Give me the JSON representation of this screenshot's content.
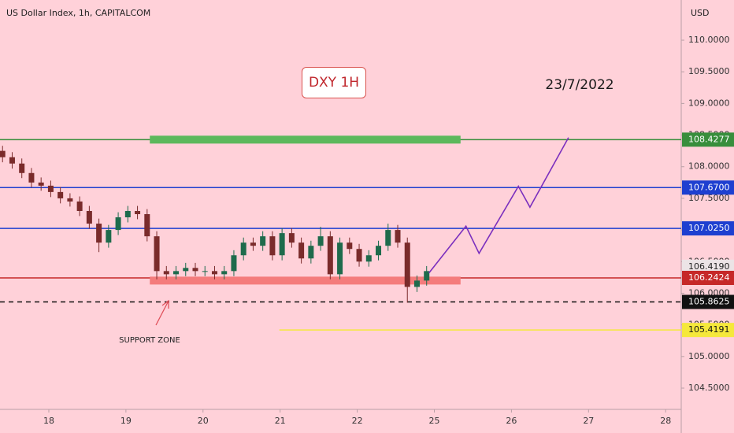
{
  "chart_data": {
    "type": "candlestick",
    "title": "US Dollar Index, 1h, CAPITALCOM",
    "currency": "USD",
    "badge": "DXY 1H",
    "date_note": "23/7/2022",
    "support_note": "SUPPORT ZONE",
    "xlim": [
      -0.633,
      8.202
    ],
    "xticks": [
      {
        "value": 0,
        "label": "18"
      },
      {
        "value": 1,
        "label": "19"
      },
      {
        "value": 2,
        "label": "20"
      },
      {
        "value": 3,
        "label": "21"
      },
      {
        "value": 4,
        "label": "22"
      },
      {
        "value": 5,
        "label": "25"
      },
      {
        "value": 6,
        "label": "26"
      },
      {
        "value": 7,
        "label": "27"
      },
      {
        "value": 8,
        "label": "28"
      }
    ],
    "ylim": [
      104.164,
      110.635
    ],
    "yticks": [
      {
        "value": 110,
        "label": "110.0000"
      },
      {
        "value": 109.5,
        "label": "109.5000"
      },
      {
        "value": 109,
        "label": "109.0000"
      },
      {
        "value": 108.5,
        "label": "108.5000"
      },
      {
        "value": 108,
        "label": "108.0000"
      },
      {
        "value": 107.5,
        "label": "107.5000"
      },
      {
        "value": 107,
        "label": "107.0000"
      },
      {
        "value": 106.5,
        "label": "106.5000"
      },
      {
        "value": 106,
        "label": "106.0000"
      },
      {
        "value": 105.5,
        "label": "105.5000"
      },
      {
        "value": 105,
        "label": "105.0000"
      },
      {
        "value": 104.5,
        "label": "104.5000"
      }
    ],
    "grid": false,
    "up_color": "#1e6b4c",
    "down_color": "#7a2b2b",
    "candles": {
      "x": [
        -0.6,
        -0.475,
        -0.35,
        -0.225,
        -0.1,
        0.025,
        0.15,
        0.275,
        0.4,
        0.525,
        0.65,
        0.775,
        0.9,
        1.025,
        1.15,
        1.275,
        1.4,
        1.525,
        1.65,
        1.775,
        1.9,
        2.025,
        2.15,
        2.275,
        2.4,
        2.525,
        2.65,
        2.775,
        2.9,
        3.025,
        3.15,
        3.275,
        3.4,
        3.525,
        3.65,
        3.775,
        3.9,
        4.025,
        4.15,
        4.275,
        4.4,
        4.525,
        4.65,
        4.775,
        4.9
      ],
      "open": [
        108.25,
        108.15,
        108.05,
        107.9,
        107.75,
        107.7,
        107.6,
        107.5,
        107.45,
        107.3,
        107.1,
        106.8,
        107.0,
        107.2,
        107.3,
        107.25,
        106.9,
        106.35,
        106.3,
        106.35,
        106.4,
        106.35,
        106.35,
        106.3,
        106.35,
        106.6,
        106.8,
        106.75,
        106.9,
        106.6,
        106.95,
        106.8,
        106.55,
        106.75,
        106.9,
        106.3,
        106.8,
        106.7,
        106.5,
        106.6,
        106.75,
        107.0,
        106.8,
        106.1,
        106.2
      ],
      "high": [
        108.33,
        108.23,
        108.13,
        107.98,
        107.83,
        107.78,
        107.68,
        107.58,
        107.53,
        107.38,
        107.18,
        107.08,
        107.28,
        107.38,
        107.38,
        107.33,
        106.98,
        106.43,
        106.43,
        106.48,
        106.48,
        106.43,
        106.43,
        106.43,
        106.68,
        106.88,
        106.88,
        106.98,
        106.98,
        107.03,
        107.03,
        106.88,
        106.83,
        107.05,
        106.98,
        106.88,
        106.88,
        106.78,
        106.68,
        106.83,
        107.1,
        107.08,
        106.88,
        106.28,
        106.43
      ],
      "low": [
        108.07,
        107.97,
        107.82,
        107.67,
        107.62,
        107.52,
        107.42,
        107.37,
        107.22,
        107.02,
        106.65,
        106.72,
        106.92,
        107.12,
        107.17,
        106.82,
        106.22,
        106.22,
        106.22,
        106.27,
        106.27,
        106.27,
        106.22,
        106.22,
        106.27,
        106.52,
        106.67,
        106.67,
        106.52,
        106.52,
        106.72,
        106.47,
        106.47,
        106.67,
        106.22,
        106.22,
        106.62,
        106.42,
        106.42,
        106.52,
        106.67,
        106.72,
        105.85,
        106.02,
        106.12
      ],
      "close": [
        108.15,
        108.05,
        107.9,
        107.75,
        107.7,
        107.6,
        107.5,
        107.45,
        107.3,
        107.1,
        106.8,
        107.0,
        107.2,
        107.3,
        107.25,
        106.9,
        106.35,
        106.3,
        106.35,
        106.4,
        106.35,
        106.35,
        106.3,
        106.35,
        106.6,
        106.8,
        106.75,
        106.9,
        106.6,
        106.95,
        106.8,
        106.55,
        106.75,
        106.9,
        106.3,
        106.8,
        106.7,
        106.5,
        106.6,
        106.75,
        107.0,
        106.8,
        106.1,
        106.2,
        106.35
      ]
    },
    "levels": [
      {
        "price": 108.4277,
        "color": "#388e3c",
        "style": "solid",
        "text_color": "#ffffff"
      },
      {
        "price": {
          "value": 107.67,
          "label": "107.6700"
        },
        "color": "#1e3fd0",
        "style": "solid",
        "text_color": "#ffffff"
      },
      {
        "price": {
          "value": 107.025,
          "label": "107.0250"
        },
        "color": "#1e3fd0",
        "style": "solid",
        "text_color": "#ffffff"
      },
      {
        "price": 106.2424,
        "color": "#c62828",
        "style": "solid",
        "text_color": "#ffffff"
      },
      {
        "price": 105.8625,
        "color": "#111111",
        "style": "dashed",
        "text_color": "#ffffff"
      },
      {
        "price": 105.4191,
        "color": "#f5e83b",
        "style": "solid",
        "text_color": "#111111",
        "from": 2.99
      }
    ],
    "current_price": {
      "value": 106.419,
      "label": "106.4190"
    },
    "zones": [
      {
        "value": 108.4277,
        "from": 1.31,
        "to": 5.34,
        "color": "#5cb85c"
      },
      {
        "value": 106.2,
        "from": 1.31,
        "to": 5.34,
        "color": "#f47c7c"
      }
    ],
    "projection": {
      "x": [
        4.93,
        5.41,
        5.58,
        6.09,
        6.24,
        6.74
      ],
      "y": [
        106.32,
        107.06,
        106.63,
        107.69,
        107.36,
        108.46
      ],
      "color": "#7b2fbe"
    }
  }
}
